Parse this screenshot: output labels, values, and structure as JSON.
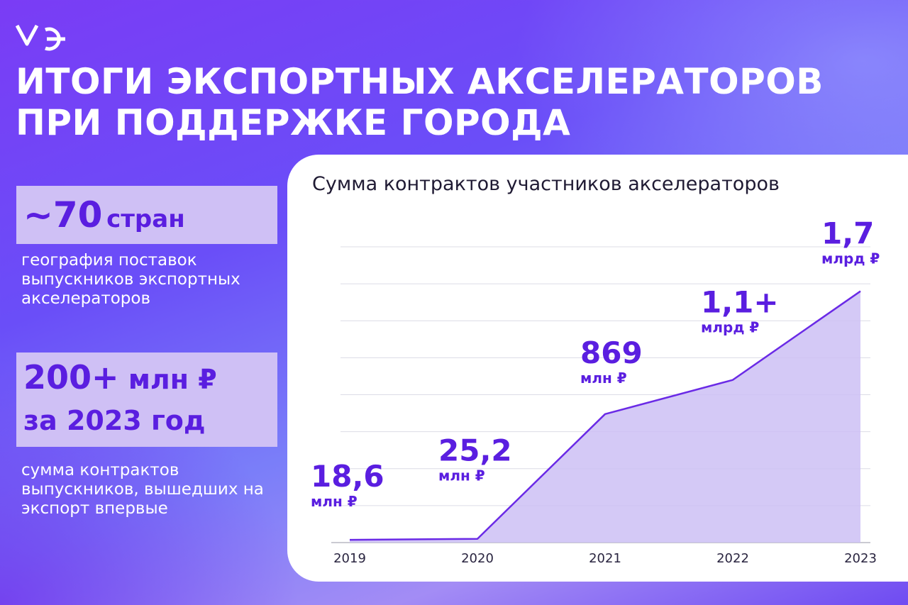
{
  "header": {
    "logo_icon": "me-logo",
    "title_line1": "ИТОГИ ЭКСПОРТНЫХ АКСЕЛЕРАТОРОВ",
    "title_line2": "ПРИ ПОДДЕРЖКЕ ГОРОДА"
  },
  "stats": {
    "countries": {
      "value": "~70",
      "unit": "стран",
      "description": "география поставок выпускников экспортных акселераторов"
    },
    "contracts": {
      "value": "200+",
      "unit": "млн ₽",
      "period": "за 2023 год",
      "description": "сумма контрактов выпускников, вышедших на экспорт впервые"
    }
  },
  "colors": {
    "accent": "#5a1ee0",
    "box": "#cfc0f5",
    "area_fill": "#cdc0f5",
    "line": "#6a2ae6",
    "grid": "#dcdce6"
  },
  "chart_data": {
    "type": "area",
    "title": "Сумма контрактов участников акселераторов",
    "categories": [
      "2019",
      "2020",
      "2021",
      "2022",
      "2023"
    ],
    "values": [
      0.0186,
      0.0252,
      0.869,
      1.1,
      1.7
    ],
    "value_unit": "млрд ₽",
    "data_labels": [
      {
        "value": "18,6",
        "unit": "млн ₽"
      },
      {
        "value": "25,2",
        "unit": "млн ₽"
      },
      {
        "value": "869",
        "unit": "млн ₽"
      },
      {
        "value": "1,1+",
        "unit": "млрд ₽"
      },
      {
        "value": "1,7",
        "unit": "млрд ₽"
      }
    ],
    "ylim": [
      0,
      2.0
    ],
    "grid": true,
    "legend": "none"
  }
}
